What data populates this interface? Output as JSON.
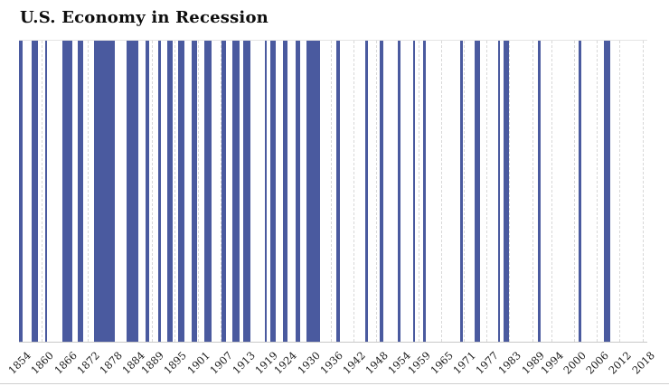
{
  "chart_data": {
    "type": "bar",
    "title": "U.S. Economy in Recession",
    "subtitle": "",
    "xlabel": "",
    "ylabel": "",
    "legend": "none",
    "grid": "vertical-dashed",
    "x_domain": [
      1854,
      2019.3
    ],
    "x_ticks": [
      1854,
      1860,
      1866,
      1872,
      1878,
      1884,
      1889,
      1895,
      1901,
      1907,
      1913,
      1919,
      1924,
      1930,
      1936,
      1942,
      1948,
      1954,
      1959,
      1965,
      1971,
      1977,
      1983,
      1989,
      1994,
      2000,
      2006,
      2012,
      2018
    ],
    "bar_color": "#4a5a9f",
    "gridline_color": "#d8d8d8",
    "axis_color": "#c9c9c9",
    "background_color": "#ffffff",
    "recessions": [
      {
        "start": 1854.0,
        "end": 1854.95
      },
      {
        "start": 1857.42,
        "end": 1858.95
      },
      {
        "start": 1860.79,
        "end": 1861.45
      },
      {
        "start": 1865.29,
        "end": 1867.95
      },
      {
        "start": 1869.45,
        "end": 1870.95
      },
      {
        "start": 1873.79,
        "end": 1879.21
      },
      {
        "start": 1882.21,
        "end": 1885.37
      },
      {
        "start": 1887.21,
        "end": 1888.29
      },
      {
        "start": 1890.54,
        "end": 1891.37
      },
      {
        "start": 1893.04,
        "end": 1894.45
      },
      {
        "start": 1895.95,
        "end": 1897.45
      },
      {
        "start": 1899.45,
        "end": 1900.95
      },
      {
        "start": 1902.71,
        "end": 1904.62
      },
      {
        "start": 1907.37,
        "end": 1908.45
      },
      {
        "start": 1910.04,
        "end": 1912.04
      },
      {
        "start": 1913.04,
        "end": 1914.95
      },
      {
        "start": 1918.62,
        "end": 1919.21
      },
      {
        "start": 1920.04,
        "end": 1921.54
      },
      {
        "start": 1923.37,
        "end": 1924.54
      },
      {
        "start": 1926.79,
        "end": 1927.87
      },
      {
        "start": 1929.62,
        "end": 1933.21
      },
      {
        "start": 1937.37,
        "end": 1938.45
      },
      {
        "start": 1945.12,
        "end": 1945.79
      },
      {
        "start": 1948.87,
        "end": 1949.79
      },
      {
        "start": 1953.54,
        "end": 1954.37
      },
      {
        "start": 1957.62,
        "end": 1958.29
      },
      {
        "start": 1960.29,
        "end": 1961.12
      },
      {
        "start": 1969.95,
        "end": 1970.87
      },
      {
        "start": 1973.87,
        "end": 1975.21
      },
      {
        "start": 1980.04,
        "end": 1980.54
      },
      {
        "start": 1981.54,
        "end": 1982.87
      },
      {
        "start": 1990.54,
        "end": 1991.21
      },
      {
        "start": 2001.21,
        "end": 2001.87
      },
      {
        "start": 2007.95,
        "end": 2009.45
      }
    ]
  }
}
